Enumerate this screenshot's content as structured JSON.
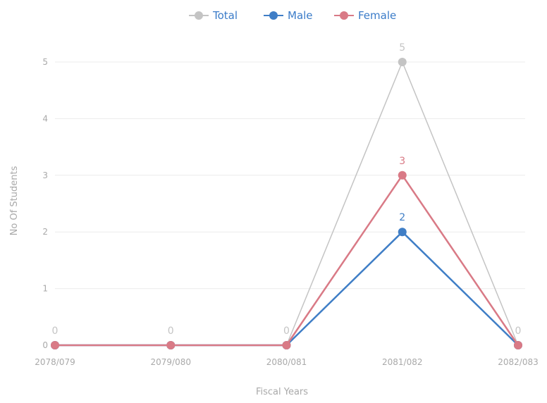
{
  "chart_data": {
    "type": "line",
    "title": "",
    "xlabel": "Fiscal Years",
    "ylabel": "No Of Students",
    "categories": [
      "2078/079",
      "2079/080",
      "2080/081",
      "2081/082",
      "2082/083"
    ],
    "ylim": [
      0,
      5
    ],
    "yticks": [
      "0",
      "1",
      "2",
      "3",
      "4",
      "5"
    ],
    "grid": true,
    "legend_position": "top-center",
    "series": [
      {
        "name": "Total",
        "color": "#c4c4c4",
        "values": [
          0,
          0,
          0,
          5,
          0
        ],
        "labels": [
          "0",
          "0",
          "0",
          "5",
          "0"
        ]
      },
      {
        "name": "Male",
        "color": "#3f7ec6",
        "values": [
          0,
          0,
          0,
          2,
          0
        ],
        "labels": [
          "",
          "",
          "",
          "2",
          ""
        ]
      },
      {
        "name": "Female",
        "color": "#d97a86",
        "values": [
          0,
          0,
          0,
          3,
          0
        ],
        "labels": [
          "",
          "",
          "",
          "3",
          ""
        ]
      }
    ]
  }
}
